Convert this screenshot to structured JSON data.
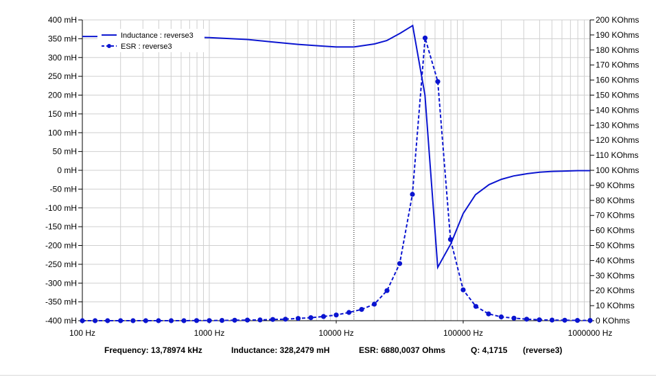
{
  "chart_data": {
    "type": "line",
    "x_scale": "log",
    "xlim": [
      100,
      1000000
    ],
    "x_ticks": [
      100,
      1000,
      10000,
      100000,
      1000000
    ],
    "x_tick_labels": [
      "100 Hz",
      "1000 Hz",
      "10000 Hz",
      "100000 Hz",
      "1000000 Hz"
    ],
    "y_left": {
      "ylim": [
        -400,
        400
      ],
      "ticks": [
        -400,
        -350,
        -300,
        -250,
        -200,
        -150,
        -100,
        -50,
        0,
        50,
        100,
        150,
        200,
        250,
        300,
        350,
        400
      ],
      "tick_labels": [
        "-400 mH",
        "-350 mH",
        "-300 mH",
        "-250 mH",
        "-200 mH",
        "-150 mH",
        "-100 mH",
        "-50 mH",
        "0 mH",
        "50 mH",
        "100 mH",
        "150 mH",
        "200 mH",
        "250 mH",
        "300 mH",
        "350 mH",
        "400 mH"
      ]
    },
    "y_right": {
      "ylim": [
        0,
        200
      ],
      "ticks": [
        0,
        10,
        20,
        30,
        40,
        50,
        60,
        70,
        80,
        90,
        100,
        110,
        120,
        130,
        140,
        150,
        160,
        170,
        180,
        190,
        200
      ],
      "tick_labels": [
        "0 KOhms",
        "10 KOhms",
        "20 KOhms",
        "30 KOhms",
        "40 KOhms",
        "50 KOhms",
        "60 KOhms",
        "70 KOhms",
        "80 KOhms",
        "90 KOhms",
        "100 KOhms",
        "110 KOhms",
        "120 KOhms",
        "130 KOhms",
        "140 KOhms",
        "150 KOhms",
        "160 KOhms",
        "170 KOhms",
        "180 KOhms",
        "190 KOhms",
        "200 KOhms"
      ]
    },
    "grid": true,
    "legend_position": "top-left",
    "cursor_x": 13789.74,
    "series": [
      {
        "name": "Inductance : reverse3",
        "axis": "left",
        "style": "solid",
        "color": "#0a14d0",
        "points": [
          [
            100,
            356
          ],
          [
            200,
            356
          ],
          [
            500,
            355
          ],
          [
            1000,
            353
          ],
          [
            2000,
            348
          ],
          [
            3000,
            342
          ],
          [
            5000,
            335
          ],
          [
            8000,
            330
          ],
          [
            10000,
            328
          ],
          [
            13790,
            328
          ],
          [
            20000,
            336
          ],
          [
            25000,
            345
          ],
          [
            32000,
            365
          ],
          [
            40000,
            385
          ],
          [
            50000,
            200
          ],
          [
            63000,
            -258
          ],
          [
            80000,
            -195
          ],
          [
            100000,
            -115
          ],
          [
            125000,
            -65
          ],
          [
            160000,
            -38
          ],
          [
            200000,
            -24
          ],
          [
            250000,
            -15
          ],
          [
            320000,
            -9
          ],
          [
            400000,
            -5
          ],
          [
            500000,
            -3
          ],
          [
            630000,
            -2
          ],
          [
            800000,
            -1
          ],
          [
            1000000,
            -1
          ]
        ]
      },
      {
        "name": "ESR : reverse3",
        "axis": "right",
        "style": "dashed-markers",
        "color": "#0a14d0",
        "points": [
          [
            100,
            0
          ],
          [
            126,
            0
          ],
          [
            158,
            0
          ],
          [
            200,
            0
          ],
          [
            251,
            0
          ],
          [
            316,
            0
          ],
          [
            398,
            0
          ],
          [
            501,
            0
          ],
          [
            631,
            0
          ],
          [
            794,
            0.1
          ],
          [
            1000,
            0.1
          ],
          [
            1259,
            0.2
          ],
          [
            1585,
            0.3
          ],
          [
            1995,
            0.4
          ],
          [
            2512,
            0.5
          ],
          [
            3162,
            0.8
          ],
          [
            3981,
            1.0
          ],
          [
            5012,
            1.5
          ],
          [
            6310,
            2.0
          ],
          [
            7943,
            2.8
          ],
          [
            10000,
            3.8
          ],
          [
            12589,
            5.5
          ],
          [
            15849,
            7.5
          ],
          [
            19953,
            11
          ],
          [
            25119,
            20
          ],
          [
            31623,
            38
          ],
          [
            39811,
            84
          ],
          [
            50119,
            188
          ],
          [
            63096,
            159
          ],
          [
            79433,
            54
          ],
          [
            100000,
            20.5
          ],
          [
            125893,
            9.5
          ],
          [
            158489,
            4.5
          ],
          [
            199526,
            2.5
          ],
          [
            251189,
            1.7
          ],
          [
            316228,
            1.0
          ],
          [
            398107,
            0.6
          ],
          [
            501187,
            0.4
          ],
          [
            630957,
            0.3
          ],
          [
            794328,
            0.2
          ],
          [
            1000000,
            0.2
          ]
        ]
      }
    ]
  },
  "status": {
    "frequency": "Frequency: 13,78974 kHz",
    "inductance": "Inductance: 328,2479 mH",
    "esr": "ESR: 6880,0037 Ohms",
    "q": "Q: 4,1715",
    "trace": "(reverse3)"
  }
}
